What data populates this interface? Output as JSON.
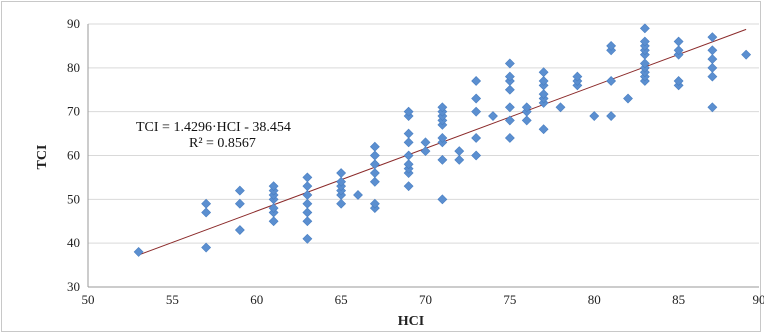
{
  "chart_data": {
    "type": "scatter",
    "title": "",
    "xlabel": "HCI",
    "ylabel": "TCI",
    "xlim": [
      50,
      90
    ],
    "ylim": [
      30,
      90
    ],
    "x_ticks": [
      50,
      55,
      60,
      65,
      70,
      75,
      80,
      85,
      90
    ],
    "y_ticks": [
      30,
      40,
      50,
      60,
      70,
      80,
      90
    ],
    "grid": "horizontal",
    "marker_color": "#5b8fd0",
    "trendline_color": "#8b2a2a",
    "trendline": {
      "slope": 1.4296,
      "intercept": -38.454,
      "x_range": [
        53,
        89
      ]
    },
    "annotation": {
      "equation": "TCI = 1.4296·HCI - 38.454",
      "r2": "R² = 0.8567"
    },
    "points": [
      [
        53,
        38
      ],
      [
        57,
        39
      ],
      [
        57,
        47
      ],
      [
        57,
        49
      ],
      [
        59,
        43
      ],
      [
        59,
        49
      ],
      [
        59,
        52
      ],
      [
        61,
        45
      ],
      [
        61,
        47
      ],
      [
        61,
        48
      ],
      [
        61,
        50
      ],
      [
        61,
        51
      ],
      [
        61,
        52
      ],
      [
        61,
        53
      ],
      [
        63,
        41
      ],
      [
        63,
        45
      ],
      [
        63,
        47
      ],
      [
        63,
        49
      ],
      [
        63,
        51
      ],
      [
        63,
        53
      ],
      [
        63,
        55
      ],
      [
        65,
        49
      ],
      [
        65,
        51
      ],
      [
        65,
        52
      ],
      [
        65,
        53
      ],
      [
        65,
        54
      ],
      [
        65,
        56
      ],
      [
        66,
        51
      ],
      [
        67,
        48
      ],
      [
        67,
        49
      ],
      [
        67,
        54
      ],
      [
        67,
        56
      ],
      [
        67,
        58
      ],
      [
        67,
        60
      ],
      [
        67,
        62
      ],
      [
        69,
        53
      ],
      [
        69,
        56
      ],
      [
        69,
        57
      ],
      [
        69,
        58
      ],
      [
        69,
        60
      ],
      [
        69,
        63
      ],
      [
        69,
        65
      ],
      [
        69,
        69
      ],
      [
        69,
        70
      ],
      [
        70,
        61
      ],
      [
        70,
        63
      ],
      [
        71,
        50
      ],
      [
        71,
        59
      ],
      [
        71,
        63
      ],
      [
        71,
        64
      ],
      [
        71,
        67
      ],
      [
        71,
        68
      ],
      [
        71,
        69
      ],
      [
        71,
        70
      ],
      [
        71,
        71
      ],
      [
        72,
        59
      ],
      [
        72,
        61
      ],
      [
        73,
        60
      ],
      [
        73,
        64
      ],
      [
        73,
        70
      ],
      [
        73,
        73
      ],
      [
        73,
        77
      ],
      [
        74,
        69
      ],
      [
        75,
        64
      ],
      [
        75,
        68
      ],
      [
        75,
        71
      ],
      [
        75,
        75
      ],
      [
        75,
        77
      ],
      [
        75,
        78
      ],
      [
        75,
        81
      ],
      [
        76,
        68
      ],
      [
        76,
        70
      ],
      [
        76,
        71
      ],
      [
        77,
        66
      ],
      [
        77,
        72
      ],
      [
        77,
        73
      ],
      [
        77,
        74
      ],
      [
        77,
        76
      ],
      [
        77,
        77
      ],
      [
        77,
        79
      ],
      [
        78,
        71
      ],
      [
        79,
        76
      ],
      [
        79,
        77
      ],
      [
        79,
        78
      ],
      [
        80,
        69
      ],
      [
        81,
        69
      ],
      [
        81,
        77
      ],
      [
        81,
        84
      ],
      [
        81,
        85
      ],
      [
        82,
        73
      ],
      [
        83,
        77
      ],
      [
        83,
        78
      ],
      [
        83,
        79
      ],
      [
        83,
        80
      ],
      [
        83,
        81
      ],
      [
        83,
        83
      ],
      [
        83,
        84
      ],
      [
        83,
        85
      ],
      [
        83,
        86
      ],
      [
        83,
        89
      ],
      [
        85,
        76
      ],
      [
        85,
        77
      ],
      [
        85,
        83
      ],
      [
        85,
        84
      ],
      [
        85,
        86
      ],
      [
        87,
        71
      ],
      [
        87,
        78
      ],
      [
        87,
        80
      ],
      [
        87,
        82
      ],
      [
        87,
        84
      ],
      [
        87,
        87
      ],
      [
        89,
        83
      ]
    ]
  }
}
